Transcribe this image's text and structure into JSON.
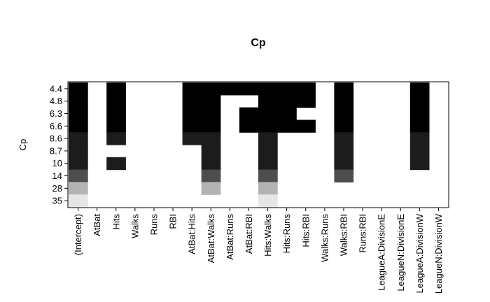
{
  "chart_data": {
    "type": "heatmap",
    "title": "Cp",
    "ylabel": "Cp",
    "xlabel": "",
    "x_labels": [
      "(Intercept)",
      "AtBat",
      "Hits",
      "Walks",
      "Runs",
      "RBI",
      "AtBat:Hits",
      "AtBat:Walks",
      "AtBat:Runs",
      "AtBat:RBI",
      "Hits:Walks",
      "Hits:Runs",
      "Hits:RBI",
      "Walks:Runs",
      "Walks:RBI",
      "Runs:RBI",
      "LeagueA:DivisionE",
      "LeagueN:DivisionE",
      "LeagueA:DivisionW",
      "LeagueN:DivisionW"
    ],
    "y_labels": [
      "4.4",
      "4.8",
      "6.3",
      "6.6",
      "8.6",
      "8.7",
      "10",
      "14",
      "28",
      "35"
    ],
    "row_shades": [
      "#000000",
      "#000000",
      "#000000",
      "#000000",
      "#1c1c1c",
      "#1c1c1c",
      "#1c1c1c",
      "#4d4d4d",
      "#b3b3b3",
      "#e6e6e6"
    ],
    "included": [
      [
        1,
        0,
        1,
        0,
        0,
        0,
        1,
        1,
        1,
        1,
        1,
        1,
        1,
        0,
        1,
        0,
        0,
        0,
        1,
        0
      ],
      [
        1,
        0,
        1,
        0,
        0,
        0,
        1,
        1,
        0,
        0,
        1,
        1,
        1,
        0,
        1,
        0,
        0,
        0,
        1,
        0
      ],
      [
        1,
        0,
        1,
        0,
        0,
        0,
        1,
        1,
        0,
        1,
        1,
        1,
        0,
        0,
        1,
        0,
        0,
        0,
        1,
        0
      ],
      [
        1,
        0,
        1,
        0,
        0,
        0,
        1,
        1,
        0,
        1,
        1,
        1,
        1,
        0,
        1,
        0,
        0,
        0,
        1,
        0
      ],
      [
        1,
        0,
        1,
        0,
        0,
        0,
        1,
        1,
        0,
        0,
        1,
        0,
        0,
        0,
        1,
        0,
        0,
        0,
        1,
        0
      ],
      [
        1,
        0,
        0,
        0,
        0,
        0,
        0,
        1,
        0,
        0,
        1,
        0,
        0,
        0,
        1,
        0,
        0,
        0,
        1,
        0
      ],
      [
        1,
        0,
        1,
        0,
        0,
        0,
        0,
        1,
        0,
        0,
        1,
        0,
        0,
        0,
        1,
        0,
        0,
        0,
        1,
        0
      ],
      [
        1,
        0,
        0,
        0,
        0,
        0,
        0,
        1,
        0,
        0,
        1,
        0,
        0,
        0,
        1,
        0,
        0,
        0,
        0,
        0
      ],
      [
        1,
        0,
        0,
        0,
        0,
        0,
        0,
        1,
        0,
        0,
        1,
        0,
        0,
        0,
        0,
        0,
        0,
        0,
        0,
        0
      ],
      [
        1,
        0,
        0,
        0,
        0,
        0,
        0,
        0,
        0,
        0,
        1,
        0,
        0,
        0,
        0,
        0,
        0,
        0,
        0,
        0
      ]
    ],
    "grid": false,
    "legend": "none"
  }
}
